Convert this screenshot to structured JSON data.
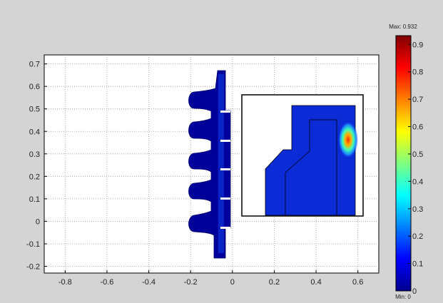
{
  "chart_data": {
    "type": "heatmap",
    "title": "",
    "xlabel": "",
    "ylabel": "",
    "xlim": [
      -0.9,
      0.7
    ],
    "ylim": [
      -0.23,
      0.74
    ],
    "x_ticks": [
      -0.8,
      -0.6,
      -0.4,
      -0.2,
      0,
      0.2,
      0.4,
      0.6
    ],
    "x_tick_labels": [
      "-0.8",
      "-0.6",
      "-0.4",
      "-0.2",
      "0",
      "0.2",
      "0.4",
      "0.6"
    ],
    "y_ticks": [
      -0.2,
      -0.1,
      0,
      0.1,
      0.2,
      0.3,
      0.4,
      0.5,
      0.6,
      0.7
    ],
    "y_tick_labels": [
      "-0.2",
      "-0.1",
      "0",
      "0.1",
      "0.2",
      "0.3",
      "0.4",
      "0.5",
      "0.6",
      "0.7"
    ],
    "grid": true,
    "colorbar": {
      "colormap": "jet",
      "min": 0,
      "max": 0.932,
      "max_label": "Max: 0.932",
      "min_label": "Min: 0",
      "ticks": [
        0,
        0.1,
        0.2,
        0.3,
        0.4,
        0.5,
        0.6,
        0.7,
        0.8,
        0.9
      ],
      "tick_labels": [
        "0",
        "0.1",
        "0.2",
        "0.3",
        "0.4",
        "0.5",
        "0.6",
        "0.7",
        "0.8",
        "0.9"
      ]
    },
    "colors": {
      "figure_background": "#d4d4d4",
      "axes_background": "#ffffff",
      "field_low": "#00008f",
      "field_mid": "#0a2bd6",
      "field_high": "#ff3a00"
    }
  }
}
